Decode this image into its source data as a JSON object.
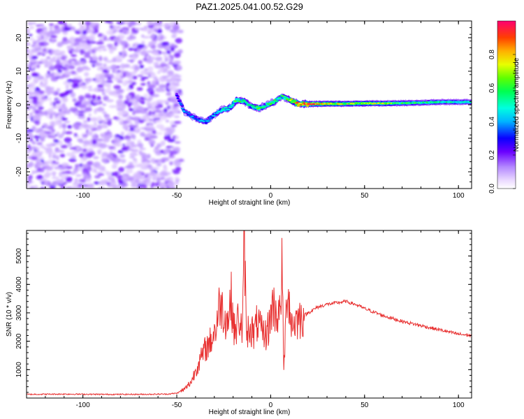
{
  "page": {
    "title": "PAZ1.2025.041.00.52.G29"
  },
  "chart_data": [
    {
      "type": "heatmap",
      "title": "PAZ1.2025.041.00.52.G29",
      "xlabel": "Height of straight line (km)",
      "ylabel": "Frequency (Hz)",
      "xlim": [
        -130,
        107
      ],
      "ylim": [
        -25,
        25
      ],
      "x_ticks": [
        -100,
        -50,
        0,
        50,
        100
      ],
      "y_ticks": [
        -20,
        -10,
        0,
        10,
        20
      ],
      "colorbar": {
        "label": "Normalized spectral amplitude",
        "range": [
          0,
          1
        ],
        "ticks": [
          "0.0",
          "0.2",
          "0.4",
          "0.6",
          "0.8"
        ]
      },
      "noise_region": {
        "x_range": [
          -130,
          -48
        ],
        "level": 0.2
      },
      "ridge": {
        "x": [
          -50,
          -46,
          -42,
          -38,
          -34,
          -30,
          -26,
          -22,
          -18,
          -14,
          -10,
          -6,
          -2,
          2,
          6,
          10,
          15,
          20,
          30,
          40,
          50,
          60,
          70,
          80,
          90,
          100,
          107
        ],
        "y": [
          3,
          -2,
          -3.5,
          -4.5,
          -5,
          -3,
          -1.5,
          -1,
          1.5,
          1,
          -0.5,
          -1,
          0,
          1,
          2.5,
          1.5,
          0.2,
          0.2,
          0.3,
          0.3,
          0.4,
          0.4,
          0.5,
          0.6,
          0.8,
          0.8,
          0.8
        ],
        "amplitude": [
          0.3,
          0.4,
          0.35,
          0.4,
          0.45,
          0.4,
          0.5,
          0.55,
          0.6,
          0.55,
          0.5,
          0.6,
          0.55,
          0.6,
          0.55,
          0.65,
          0.9,
          0.95,
          0.75,
          0.7,
          0.7,
          0.7,
          0.6,
          0.55,
          0.55,
          0.5,
          0.5
        ]
      },
      "grid": false
    },
    {
      "type": "line",
      "xlabel": "Height of straight line (km)",
      "ylabel": "SNR (10 * v/v)",
      "xlim": [
        -130,
        107
      ],
      "ylim": [
        0,
        5900
      ],
      "x_ticks": [
        -100,
        -50,
        0,
        50,
        100
      ],
      "y_ticks": [
        1000,
        2000,
        3000,
        4000,
        5000
      ],
      "series": [
        {
          "color": "#e83030",
          "x": [
            -130,
            -110,
            -90,
            -70,
            -55,
            -50,
            -46,
            -42,
            -40,
            -37,
            -35,
            -32,
            -29,
            -27,
            -25,
            -23,
            -21,
            -19,
            -17,
            -15,
            -14,
            -13,
            -11,
            -9,
            -7,
            -5,
            -3,
            -1,
            1,
            3,
            5,
            6,
            7,
            9,
            11,
            13,
            15,
            20,
            25,
            30,
            35,
            40,
            45,
            50,
            60,
            70,
            80,
            90,
            100,
            107
          ],
          "y": [
            130,
            140,
            130,
            130,
            140,
            170,
            300,
            600,
            1000,
            1400,
            1700,
            2000,
            2500,
            3400,
            3000,
            2700,
            3500,
            2200,
            2900,
            2300,
            5800,
            2200,
            2600,
            2200,
            2700,
            2300,
            2200,
            2500,
            3300,
            3000,
            2900,
            4600,
            1000,
            4100,
            2600,
            2700,
            2800,
            3000,
            3200,
            3300,
            3350,
            3400,
            3300,
            3150,
            2900,
            2700,
            2550,
            2400,
            2250,
            2200
          ]
        }
      ],
      "grid": false
    }
  ]
}
